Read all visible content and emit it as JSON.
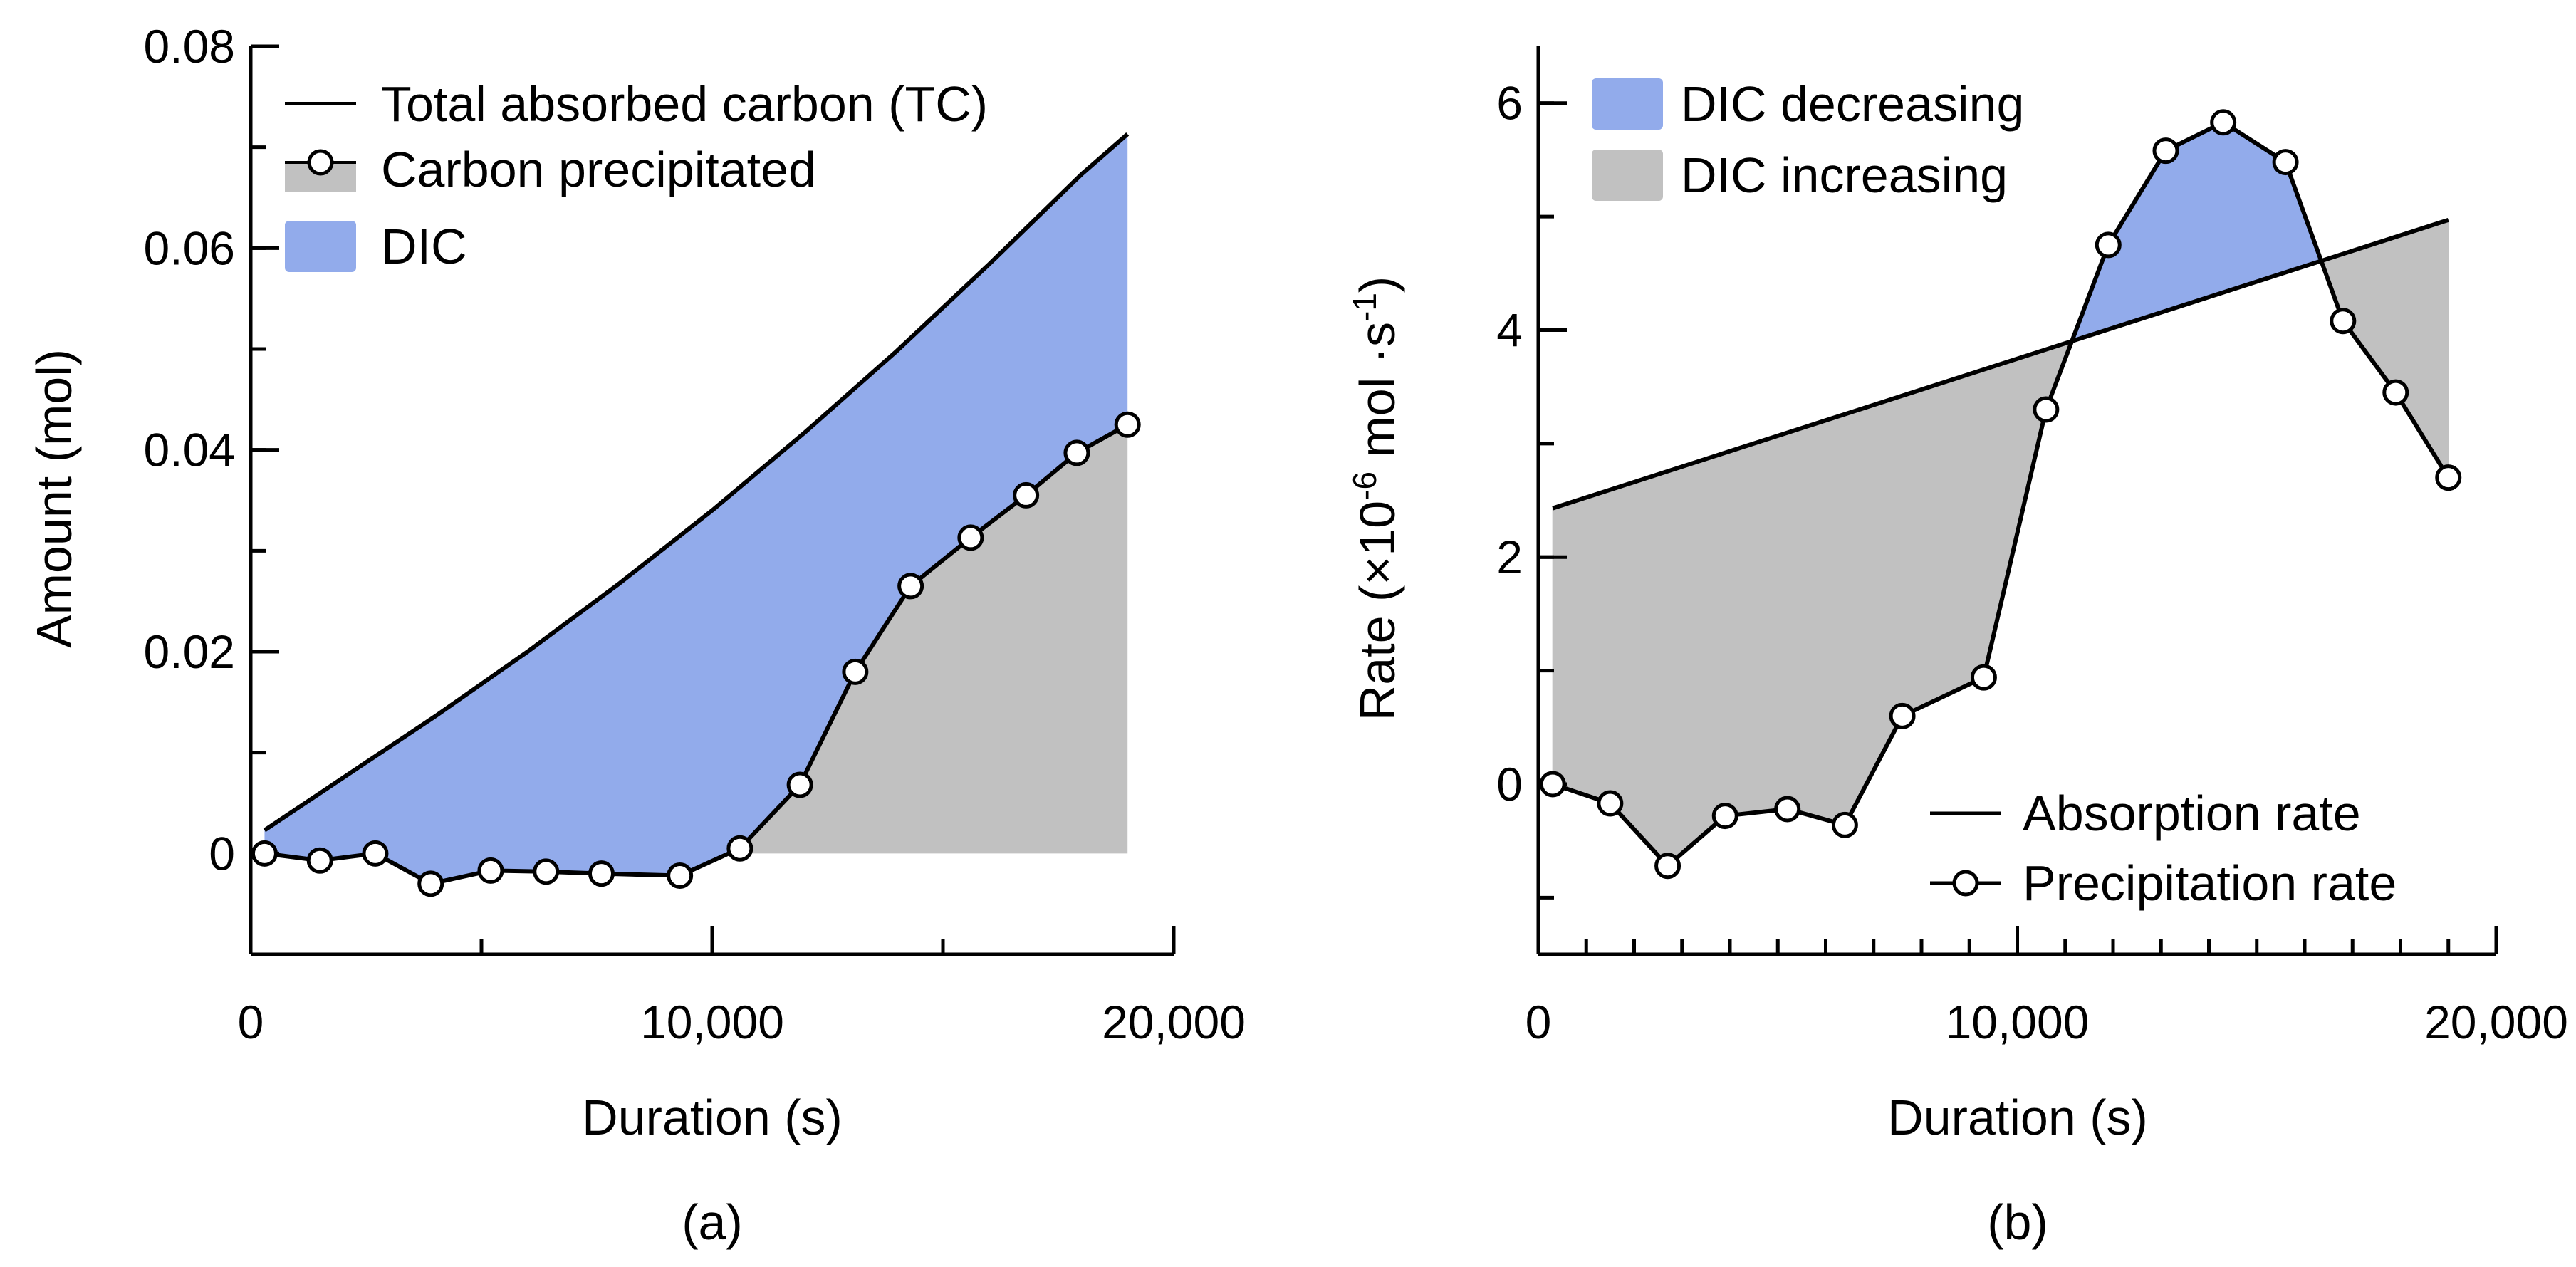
{
  "colors": {
    "dic_fill": "#92abeb",
    "precip_fill": "#c1c1c1",
    "line": "#000000"
  },
  "chart_data": [
    {
      "type": "area",
      "panel_label": "(a)",
      "xlabel": "Duration (s)",
      "ylabel": "Amount (mol)",
      "xlim": [
        0,
        20000
      ],
      "ylim": [
        -0.01,
        0.08
      ],
      "x_ticks": [
        0,
        10000,
        20000
      ],
      "x_tick_labels": [
        "0",
        "10,000",
        "20,000"
      ],
      "x_minor_step": 5000,
      "y_ticks": [
        0,
        0.02,
        0.04,
        0.06,
        0.08
      ],
      "y_tick_labels": [
        "0",
        "0.02",
        "0.04",
        "0.06",
        "0.08"
      ],
      "y_minor_step": 0.01,
      "legend": {
        "position": "top-left",
        "entries": [
          "Total absorbed carbon (TC)",
          "Carbon precipitated",
          "DIC"
        ]
      },
      "series": [
        {
          "name": "Total absorbed carbon (TC)",
          "style": "line",
          "x": [
            300,
            2000,
            4000,
            6000,
            8000,
            10000,
            12000,
            14000,
            16000,
            18000,
            19000
          ],
          "y": [
            0.0023,
            0.0075,
            0.0136,
            0.02,
            0.0268,
            0.034,
            0.0417,
            0.0498,
            0.0584,
            0.0673,
            0.0713
          ]
        },
        {
          "name": "Carbon precipitated",
          "style": "line-markers",
          "x": [
            300,
            1500,
            2700,
            3900,
            5200,
            6400,
            7600,
            9300,
            10600,
            11900,
            13100,
            14300,
            15600,
            16800,
            17900,
            19000
          ],
          "y": [
            0.0,
            -0.0007,
            0.0,
            -0.003,
            -0.0017,
            -0.0018,
            -0.002,
            -0.0022,
            0.0005,
            0.0068,
            0.018,
            0.0265,
            0.0313,
            0.0355,
            0.0397,
            0.0425
          ]
        }
      ]
    },
    {
      "type": "area",
      "panel_label": "(b)",
      "xlabel": "Duration (s)",
      "ylabel_parts": [
        "Rate (×10",
        "-6",
        " mol ·s",
        "-1",
        ")"
      ],
      "xlim": [
        0,
        20000
      ],
      "ylim": [
        -1.5,
        6.5
      ],
      "x_ticks": [
        0,
        10000,
        20000
      ],
      "x_tick_labels": [
        "0",
        "10,000",
        "20,000"
      ],
      "x_minor_step": 1000,
      "y_ticks": [
        0,
        2,
        4,
        6
      ],
      "y_tick_labels": [
        "0",
        "2",
        "4",
        "6"
      ],
      "y_minor_step": 1,
      "legend_top": {
        "position": "top-left",
        "entries": [
          "DIC decreasing",
          "DIC increasing"
        ]
      },
      "legend_bottom": {
        "position": "bottom-right",
        "entries": [
          "Absorption rate",
          "Precipitation rate"
        ]
      },
      "series": [
        {
          "name": "Absorption rate",
          "style": "line",
          "x": [
            300,
            19000
          ],
          "y": [
            2.43,
            4.97
          ]
        },
        {
          "name": "Precipitation rate",
          "style": "line-markers",
          "x": [
            300,
            1500,
            2700,
            3900,
            5200,
            6400,
            7600,
            9300,
            10600,
            11900,
            13100,
            14300,
            15600,
            16800,
            17900,
            19000
          ],
          "y": [
            0.0,
            -0.17,
            -0.72,
            -0.28,
            -0.22,
            -0.36,
            0.6,
            0.94,
            3.3,
            4.75,
            5.58,
            5.83,
            5.48,
            4.08,
            3.45,
            2.7
          ]
        }
      ]
    }
  ]
}
